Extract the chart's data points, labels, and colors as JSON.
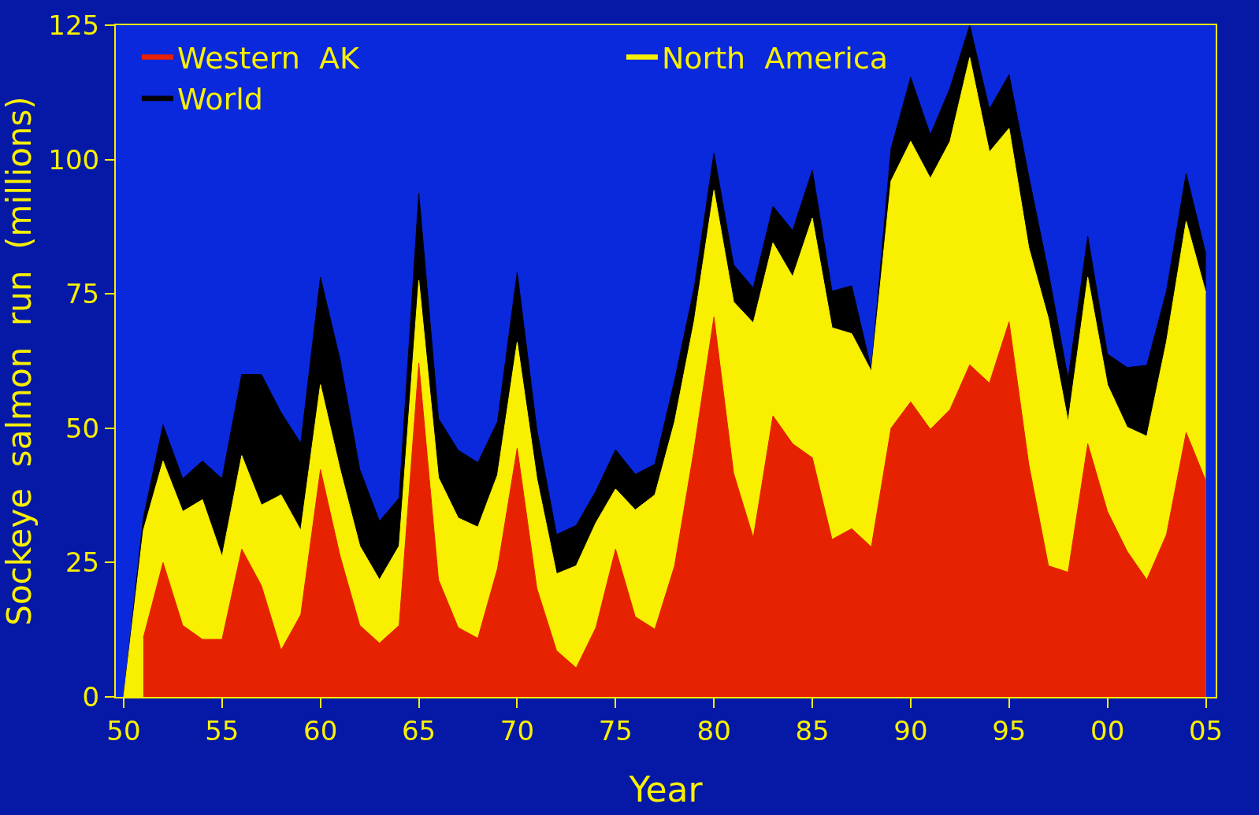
{
  "chart_data": {
    "type": "area",
    "xlabel": "Year",
    "ylabel": "Sockeye  salmon  run  (millions)",
    "xlim": [
      1949.6,
      2005.5
    ],
    "ylim": [
      0,
      125
    ],
    "xticks": [
      {
        "value": 1950,
        "label": "50"
      },
      {
        "value": 1955,
        "label": "55"
      },
      {
        "value": 1960,
        "label": "60"
      },
      {
        "value": 1965,
        "label": "65"
      },
      {
        "value": 1970,
        "label": "70"
      },
      {
        "value": 1975,
        "label": "75"
      },
      {
        "value": 1980,
        "label": "80"
      },
      {
        "value": 1985,
        "label": "85"
      },
      {
        "value": 1990,
        "label": "90"
      },
      {
        "value": 1995,
        "label": "95"
      },
      {
        "value": 2000,
        "label": "00"
      },
      {
        "value": 2005,
        "label": "05"
      }
    ],
    "yticks": [
      0,
      25,
      50,
      75,
      100,
      125
    ],
    "x": [
      1950,
      1951,
      1952,
      1953,
      1954,
      1955,
      1956,
      1957,
      1958,
      1959,
      1960,
      1961,
      1962,
      1963,
      1964,
      1965,
      1966,
      1967,
      1968,
      1969,
      1970,
      1971,
      1972,
      1973,
      1974,
      1975,
      1976,
      1977,
      1978,
      1979,
      1980,
      1981,
      1982,
      1983,
      1984,
      1985,
      1986,
      1987,
      1988,
      1989,
      1990,
      1991,
      1992,
      1993,
      1994,
      1995,
      1996,
      1997,
      1998,
      1999,
      2000,
      2001,
      2002,
      2003,
      2004,
      2005
    ],
    "series": [
      {
        "name": "World",
        "color": "#000000",
        "values": [
          0,
          33.3,
          50.6,
          40.6,
          43.9,
          40.6,
          60,
          60,
          52.9,
          47.2,
          78.1,
          62.7,
          42.3,
          32.7,
          37,
          93.7,
          51.8,
          45.9,
          43.6,
          51.2,
          79,
          49.7,
          30.2,
          31.9,
          38.3,
          46,
          41.4,
          43.3,
          58.9,
          76.2,
          101.2,
          80.4,
          76.1,
          91.3,
          86.8,
          98,
          75.5,
          76.5,
          60.9,
          102,
          115.3,
          104.6,
          113.3,
          125,
          109.4,
          115.8,
          96.9,
          79,
          59.2,
          85.7,
          63.8,
          61.3,
          61.7,
          75.5,
          97.4,
          82.4
        ]
      },
      {
        "name": "North  America",
        "color": "#f8f000",
        "values": [
          0,
          31,
          43.9,
          34.5,
          36.7,
          26.1,
          44.9,
          35.7,
          37.6,
          31,
          58.1,
          42.3,
          28.1,
          21.8,
          28.1,
          77.5,
          40.8,
          33.3,
          31.6,
          41.3,
          66,
          40.6,
          22.9,
          24.4,
          32.4,
          38.7,
          34.8,
          37.6,
          51.2,
          70,
          94.3,
          73.5,
          69.6,
          84.5,
          78.2,
          89.1,
          68.7,
          67.6,
          60.6,
          96,
          103.4,
          96.5,
          103.4,
          119,
          101.4,
          105.8,
          83.6,
          70.4,
          51.2,
          78.1,
          58.1,
          50.2,
          48.5,
          66.1,
          88.5,
          75.2
        ]
      },
      {
        "name": "Western  AK",
        "color": "#e62200",
        "x": [
          1951,
          1952,
          1953,
          1954,
          1955,
          1956,
          1957,
          1958,
          1959,
          1960,
          1961,
          1962,
          1963,
          1964,
          1965,
          1966,
          1967,
          1968,
          1969,
          1970,
          1971,
          1972,
          1973,
          1974,
          1975,
          1976,
          1977,
          1978,
          1979,
          1980,
          1981,
          1982,
          1983,
          1984,
          1985,
          1986,
          1987,
          1988,
          1989,
          1990,
          1991,
          1992,
          1993,
          1994,
          1995,
          1996,
          1997,
          1998,
          1999,
          2000,
          2001,
          2002,
          2003,
          2004,
          2005
        ],
        "values": [
          11,
          25,
          13.3,
          10.7,
          10.7,
          27.5,
          20.7,
          8.7,
          15.3,
          42.3,
          26.2,
          13.3,
          10,
          13.3,
          62.1,
          21.8,
          12.9,
          10.9,
          23.9,
          46.3,
          20.2,
          8.6,
          5.4,
          12.9,
          27.5,
          14.9,
          12.6,
          24.4,
          46.3,
          70.7,
          41.6,
          29.6,
          52.3,
          47.1,
          44.5,
          29.3,
          31.3,
          27.9,
          50,
          54.9,
          49.8,
          53.5,
          61.8,
          58.4,
          69.8,
          43.3,
          24.4,
          23.2,
          47.1,
          34.5,
          27.1,
          21.8,
          30.2,
          49.2,
          40.2
        ]
      }
    ],
    "legend": "top left",
    "grid": false,
    "marker": "none"
  }
}
